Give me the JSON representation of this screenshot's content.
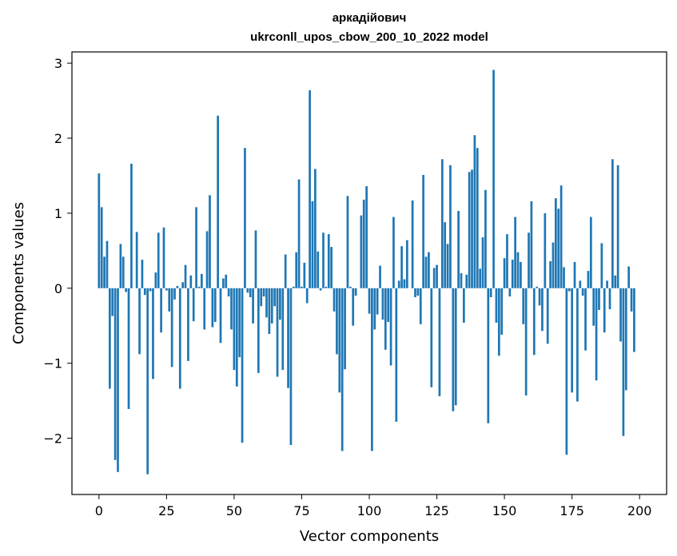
{
  "chart_data": {
    "type": "bar",
    "title": "аркадійович",
    "subtitle": "ukrconll_upos_cbow_200_10_2022 model",
    "xlabel": "Vector components",
    "ylabel": "Components values",
    "xlim": [
      -10,
      210
    ],
    "ylim": [
      -2.75,
      3.15
    ],
    "xticks": [
      0,
      25,
      50,
      75,
      100,
      125,
      150,
      175,
      200
    ],
    "yticks": [
      -2,
      -1,
      0,
      1,
      2,
      3
    ],
    "ytick_labels": [
      "−2",
      "−1",
      "0",
      "1",
      "2",
      "3"
    ],
    "grid": false,
    "color": "#1f77b4",
    "values": [
      1.53,
      1.08,
      0.42,
      0.63,
      -1.34,
      -0.37,
      -2.29,
      -2.45,
      0.59,
      0.42,
      -0.05,
      -1.61,
      1.66,
      0.0,
      0.75,
      -0.88,
      0.38,
      -0.09,
      -2.48,
      -0.04,
      -1.21,
      0.21,
      0.74,
      -0.59,
      0.81,
      -0.03,
      -0.31,
      -1.05,
      -0.15,
      0.03,
      -1.34,
      0.08,
      0.31,
      -0.97,
      0.17,
      -0.44,
      1.08,
      0.02,
      0.19,
      -0.55,
      0.76,
      1.24,
      -0.52,
      -0.45,
      2.3,
      -0.73,
      0.13,
      0.18,
      -0.11,
      -0.55,
      -1.09,
      -1.31,
      -0.92,
      -2.06,
      1.87,
      -0.06,
      -0.12,
      -0.47,
      0.77,
      -1.13,
      -0.24,
      -0.11,
      -0.39,
      -0.61,
      -0.47,
      -0.24,
      -1.18,
      -0.42,
      -1.09,
      0.45,
      -1.33,
      -2.09,
      0.02,
      0.48,
      1.45,
      0.02,
      0.34,
      -0.2,
      2.64,
      1.16,
      1.59,
      0.49,
      -0.03,
      0.74,
      0.02,
      0.72,
      0.55,
      -0.31,
      -0.88,
      -1.39,
      -2.17,
      -1.08,
      1.23,
      0.02,
      -0.5,
      -0.1,
      0.0,
      0.97,
      1.18,
      1.36,
      -0.34,
      -2.17,
      -0.55,
      -0.35,
      0.3,
      -0.42,
      -0.82,
      -0.45,
      -1.03,
      0.95,
      -1.78,
      0.1,
      0.56,
      0.12,
      0.64,
      0.0,
      1.17,
      -0.12,
      -0.1,
      -0.48,
      1.51,
      0.42,
      0.48,
      -1.32,
      0.27,
      0.31,
      -1.44,
      1.72,
      0.88,
      0.59,
      1.64,
      -1.64,
      -1.56,
      1.03,
      0.2,
      -0.46,
      0.18,
      1.55,
      1.58,
      2.04,
      1.87,
      0.26,
      0.68,
      1.31,
      -1.8,
      -0.12,
      2.91,
      -0.46,
      -0.9,
      -0.62,
      0.4,
      0.72,
      -0.11,
      0.38,
      0.95,
      0.48,
      0.35,
      -0.48,
      -1.43,
      0.74,
      1.16,
      -0.89,
      0.02,
      -0.23,
      -0.57,
      1.0,
      -0.74,
      0.36,
      0.61,
      1.2,
      1.06,
      1.37,
      0.28,
      -2.22,
      -0.04,
      -1.39,
      0.35,
      -1.51,
      0.1,
      -0.1,
      -0.83,
      0.23,
      0.95,
      -0.5,
      -1.23,
      -0.29,
      0.6,
      -0.59,
      0.1,
      -0.28,
      1.72,
      0.17,
      1.64,
      -0.71,
      -1.97,
      -1.36,
      0.29,
      -0.31,
      -0.85,
      0.0
    ]
  }
}
